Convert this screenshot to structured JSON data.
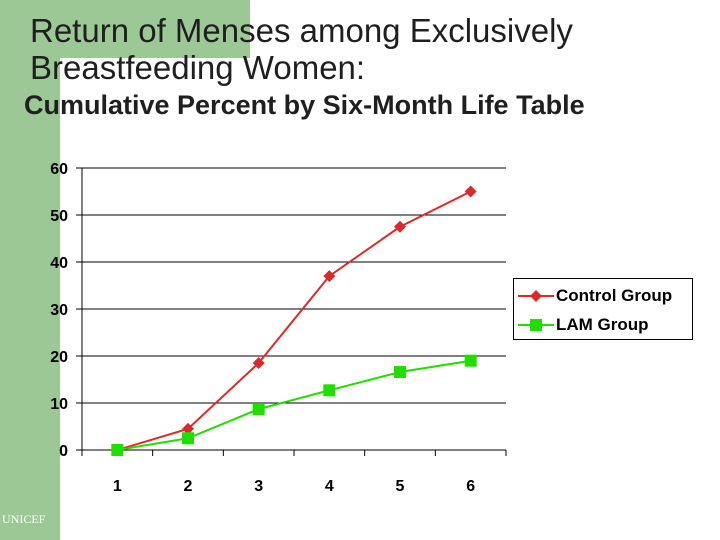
{
  "header": {
    "title": "Return of Menses among Exclusively Breastfeeding Women:",
    "subtitle": "Cumulative Percent by Six-Month Life Table"
  },
  "footer": {
    "source": "UNICEF"
  },
  "colors": {
    "sidebar": "#9cc896",
    "control": "#d92b2b",
    "lam": "#22dd00"
  },
  "chart_data": {
    "type": "line",
    "title": "Cumulative Percent by Six-Month Life Table",
    "categories": [
      "1",
      "2",
      "3",
      "4",
      "5",
      "6"
    ],
    "y_ticks": [
      "0",
      "10",
      "20",
      "30",
      "40",
      "50",
      "60"
    ],
    "ylim": [
      0,
      60
    ],
    "grid": "horizontal",
    "legend_position": "right",
    "series": [
      {
        "name": "Control Group",
        "marker": "diamond",
        "color": "#d92b2b",
        "values": [
          0,
          4.5,
          18.5,
          37,
          47.5,
          55
        ]
      },
      {
        "name": "LAM Group",
        "marker": "square",
        "color": "#22dd00",
        "values": [
          0,
          2.5,
          8.7,
          12.7,
          16.6,
          19
        ]
      }
    ]
  }
}
